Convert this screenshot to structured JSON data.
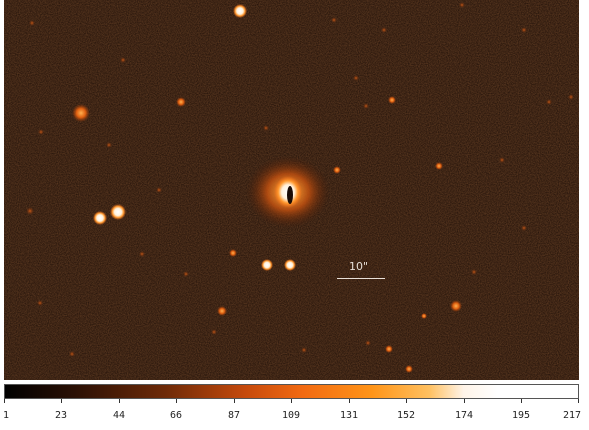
{
  "image": {
    "scale_label": "10\"",
    "background_color": "#1a0c06"
  },
  "colorbar": {
    "ticks": [
      "1",
      "23",
      "44",
      "66",
      "87",
      "109",
      "131",
      "152",
      "174",
      "195",
      "217"
    ]
  }
}
